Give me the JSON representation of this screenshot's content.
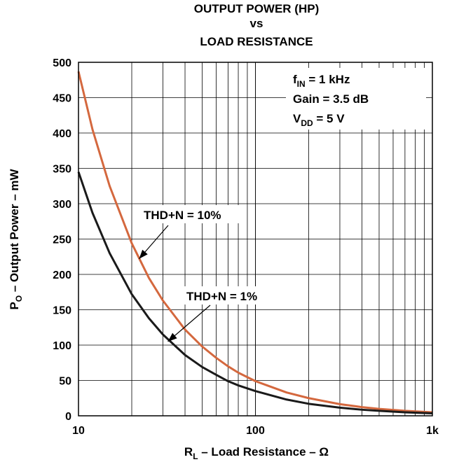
{
  "chart_data": {
    "type": "line",
    "title_lines": [
      "OUTPUT POWER (HP)",
      "vs",
      "LOAD RESISTANCE"
    ],
    "xlabel": {
      "main": "R",
      "sub": "L",
      "rest": " – Load Resistance – Ω"
    },
    "ylabel": {
      "main": "P",
      "sub": "O",
      "rest": " – Output Power – mW"
    },
    "x_scale": "log",
    "xlim": [
      10,
      1000
    ],
    "ylim": [
      0,
      500
    ],
    "grid": true,
    "x_tick_labels": [
      {
        "value": 10,
        "label": "10"
      },
      {
        "value": 100,
        "label": "100"
      },
      {
        "value": 1000,
        "label": "1k"
      }
    ],
    "y_tick_labels": [
      "0",
      "50",
      "100",
      "150",
      "200",
      "250",
      "300",
      "350",
      "400",
      "450",
      "500"
    ],
    "y_ticks": [
      0,
      50,
      100,
      150,
      200,
      250,
      300,
      350,
      400,
      450,
      500
    ],
    "conditions": [
      {
        "main": "f",
        "sub": "IN",
        "rest": " = 1 kHz"
      },
      {
        "main": "Gain = 3.5 dB",
        "sub": "",
        "rest": ""
      },
      {
        "main": "V",
        "sub": "DD",
        "rest": " = 5 V"
      }
    ],
    "series": [
      {
        "name": "THD+N = 10%",
        "color": "#d4683e",
        "points": [
          [
            10,
            487
          ],
          [
            12,
            405
          ],
          [
            15,
            325
          ],
          [
            20,
            244
          ],
          [
            25,
            195
          ],
          [
            30,
            163
          ],
          [
            40,
            122
          ],
          [
            50,
            98
          ],
          [
            60,
            82
          ],
          [
            70,
            70
          ],
          [
            80,
            61
          ],
          [
            100,
            49
          ],
          [
            150,
            33
          ],
          [
            200,
            25
          ],
          [
            300,
            16.5
          ],
          [
            400,
            12.3
          ],
          [
            500,
            9.8
          ],
          [
            700,
            7
          ],
          [
            1000,
            5
          ]
        ]
      },
      {
        "name": "THD+N = 1%",
        "color": "#1a1a1a",
        "points": [
          [
            10,
            345
          ],
          [
            12,
            287
          ],
          [
            15,
            230
          ],
          [
            20,
            172
          ],
          [
            25,
            138
          ],
          [
            30,
            115
          ],
          [
            40,
            86
          ],
          [
            50,
            69
          ],
          [
            60,
            58
          ],
          [
            70,
            49
          ],
          [
            80,
            43
          ],
          [
            100,
            35
          ],
          [
            150,
            23
          ],
          [
            200,
            17
          ],
          [
            300,
            11.5
          ],
          [
            400,
            8.6
          ],
          [
            500,
            7
          ],
          [
            700,
            5
          ],
          [
            1000,
            3.5
          ]
        ]
      }
    ],
    "annotations": [
      {
        "text": "THD+N = 10%",
        "arrow_to": [
          22,
          222
        ]
      },
      {
        "text": "THD+N = 1%",
        "arrow_to": [
          32,
          105
        ]
      }
    ]
  }
}
